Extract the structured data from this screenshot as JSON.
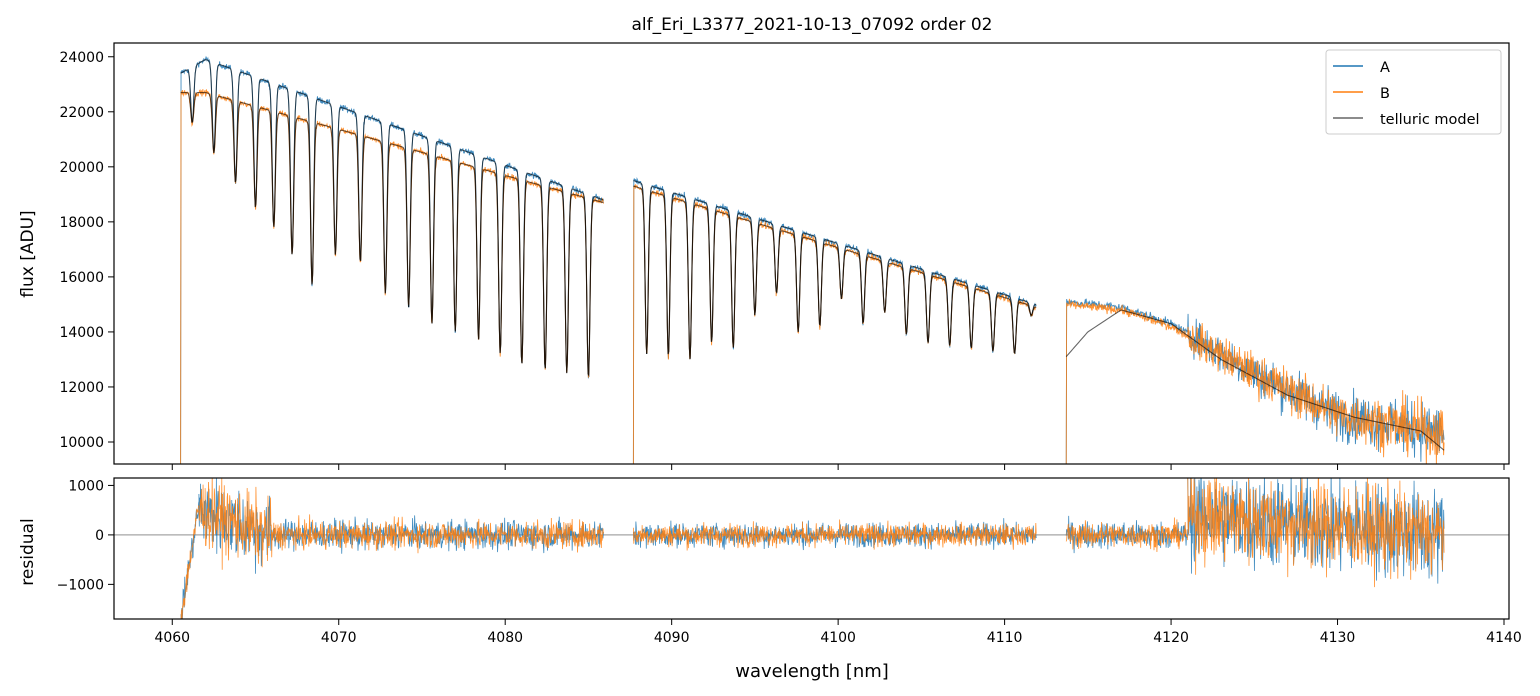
{
  "title": "alf_Eri_L3377_2021-10-13_07092  order 02",
  "chart_data": [
    {
      "type": "line",
      "panel": "flux",
      "ylabel": "flux [ADU]",
      "xlim": [
        4056.5,
        4140.3
      ],
      "ylim": [
        9200,
        24500
      ],
      "yticks": [
        10000,
        12000,
        14000,
        16000,
        18000,
        20000,
        22000,
        24000
      ],
      "ytick_labels": [
        "10000",
        "12000",
        "14000",
        "16000",
        "18000",
        "20000",
        "22000",
        "24000"
      ],
      "legend": {
        "placement": "top-right",
        "entries": [
          "A",
          "B",
          "telluric model"
        ]
      },
      "segments": [
        {
          "x_range": [
            4060.5,
            4085.9
          ],
          "continuum_A": [
            [
              4060.5,
              23400
            ],
            [
              4062.0,
              23900
            ],
            [
              4085.9,
              18800
            ]
          ],
          "continuum_B": [
            [
              4060.5,
              22700
            ],
            [
              4062.0,
              22700
            ],
            [
              4085.9,
              18700
            ]
          ],
          "absorption_lines": [
            4061.2,
            4062.5,
            4063.8,
            4065.0,
            4066.1,
            4067.2,
            4068.4,
            4069.8,
            4071.3,
            4072.8,
            4074.2,
            4075.6,
            4077.0,
            4078.4,
            4079.7,
            4081.0,
            4082.4,
            4083.7,
            4085.0
          ],
          "line_minima": [
            21600,
            20500,
            19400,
            18500,
            17800,
            16800,
            15700,
            16800,
            16500,
            15400,
            14900,
            14300,
            14000,
            13700,
            13200,
            12800,
            12600,
            12500,
            12300
          ]
        },
        {
          "x_range": [
            4087.7,
            4111.9
          ],
          "continuum_A": [
            [
              4087.7,
              19500
            ],
            [
              4111.9,
              15000
            ]
          ],
          "continuum_B": [
            [
              4087.7,
              19300
            ],
            [
              4111.9,
              14900
            ]
          ],
          "absorption_lines": [
            4088.5,
            4089.8,
            4091.1,
            4092.4,
            4093.7,
            4095.0,
            4096.3,
            4097.6,
            4098.9,
            4100.2,
            4101.5,
            4102.8,
            4104.1,
            4105.4,
            4106.7,
            4108.0,
            4109.3,
            4110.6,
            4111.6
          ],
          "line_minima": [
            13200,
            13100,
            13000,
            13600,
            13400,
            14600,
            15400,
            14000,
            14200,
            15200,
            14300,
            14700,
            13900,
            13600,
            13500,
            13400,
            13300,
            13200,
            14600
          ]
        },
        {
          "x_range": [
            4113.7,
            4136.4
          ],
          "continuum_A": [
            [
              4113.7,
              15100
            ],
            [
              4117.0,
              14900
            ],
            [
              4120.0,
              14300
            ],
            [
              4125.0,
              12500
            ],
            [
              4130.0,
              11000
            ],
            [
              4136.4,
              10300
            ]
          ],
          "continuum_B": [
            [
              4113.7,
              15000
            ],
            [
              4117.0,
              14800
            ],
            [
              4120.0,
              14200
            ],
            [
              4125.0,
              12500
            ],
            [
              4130.0,
              11000
            ],
            [
              4136.4,
              10300
            ]
          ],
          "model": [
            [
              4113.7,
              13100
            ],
            [
              4115.0,
              14000
            ],
            [
              4117.0,
              14800
            ],
            [
              4120.0,
              14300
            ],
            [
              4123.0,
              13000
            ],
            [
              4127.0,
              11700
            ],
            [
              4131.0,
              10900
            ],
            [
              4135.0,
              10400
            ],
            [
              4136.4,
              9700
            ]
          ]
        }
      ],
      "series": [
        {
          "name": "A",
          "color": "#1f77b4"
        },
        {
          "name": "B",
          "color": "#ff7f0e"
        },
        {
          "name": "telluric model",
          "color": "#000000"
        }
      ]
    },
    {
      "type": "line",
      "panel": "residual",
      "xlabel": "wavelength [nm]",
      "ylabel": "residual",
      "xlim": [
        4056.5,
        4140.3
      ],
      "ylim": [
        -1700,
        1150
      ],
      "xticks": [
        4060,
        4070,
        4080,
        4090,
        4100,
        4110,
        4120,
        4130,
        4140
      ],
      "xtick_labels": [
        "4060",
        "4070",
        "4080",
        "4090",
        "4100",
        "4110",
        "4120",
        "4130",
        "4140"
      ],
      "yticks": [
        -1000,
        0,
        1000
      ],
      "ytick_labels": [
        "−1000",
        "0",
        "1000"
      ],
      "reference_line": 0,
      "noise_levels": [
        {
          "x_range": [
            4060.5,
            4061.6
          ],
          "trend": [
            -1700,
            600
          ],
          "amplitude": 300
        },
        {
          "x_range": [
            4061.6,
            4066.0
          ],
          "trend": [
            500,
            0
          ],
          "amplitude": 700
        },
        {
          "x_range": [
            4066.0,
            4085.9
          ],
          "trend": [
            0,
            0
          ],
          "amplitude": 280
        },
        {
          "x_range": [
            4087.7,
            4111.9
          ],
          "trend": [
            0,
            0
          ],
          "amplitude": 230
        },
        {
          "x_range": [
            4113.7,
            4121.0
          ],
          "trend": [
            0,
            0
          ],
          "amplitude": 260
        },
        {
          "x_range": [
            4121.0,
            4136.4
          ],
          "trend": [
            400,
            0
          ],
          "amplitude": 900
        }
      ],
      "series": [
        {
          "name": "A",
          "color": "#1f77b4"
        },
        {
          "name": "B",
          "color": "#ff7f0e"
        }
      ]
    }
  ]
}
